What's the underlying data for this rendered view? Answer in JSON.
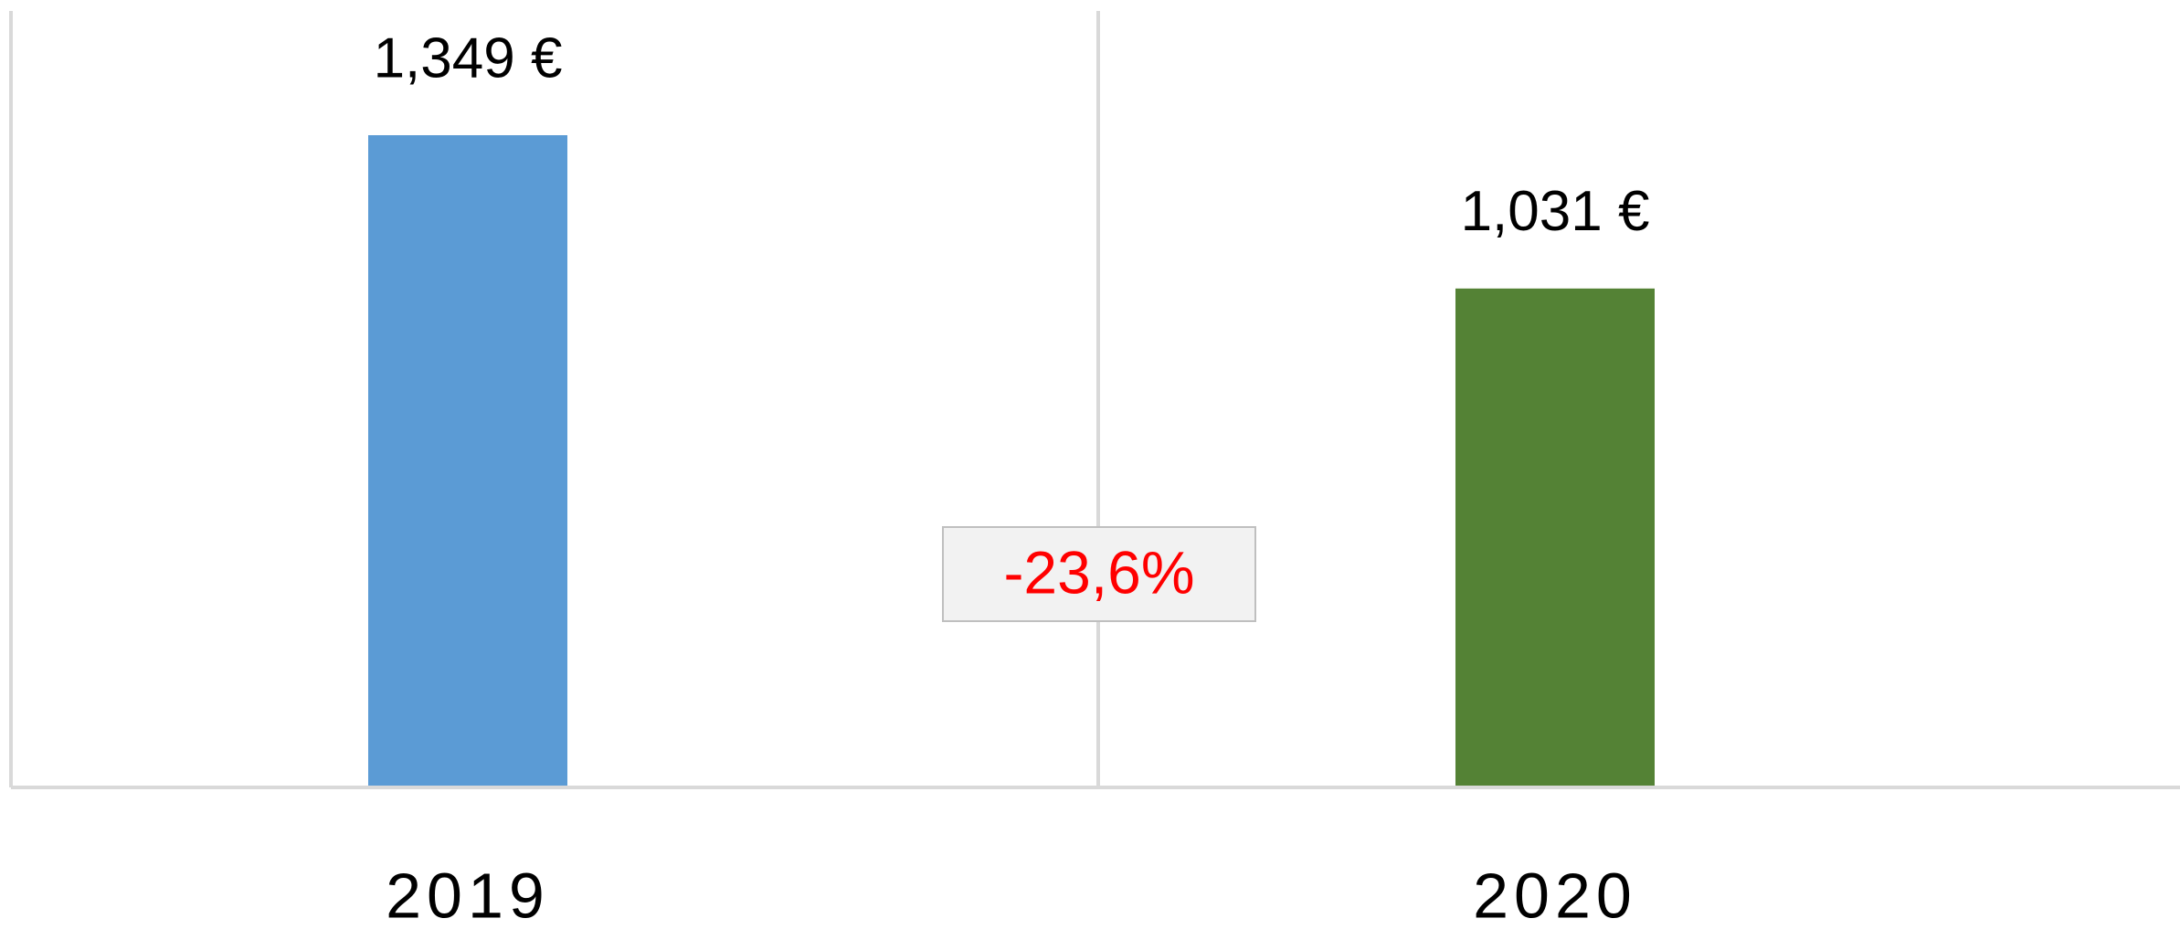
{
  "chart_data": {
    "type": "bar",
    "categories": [
      "2019",
      "2020"
    ],
    "values": [
      1349,
      1031
    ],
    "value_labels": [
      "1,349 €",
      "1,031 €"
    ],
    "colors": [
      "#5b9bd5",
      "#548235"
    ],
    "annotation": "-23,6%"
  }
}
